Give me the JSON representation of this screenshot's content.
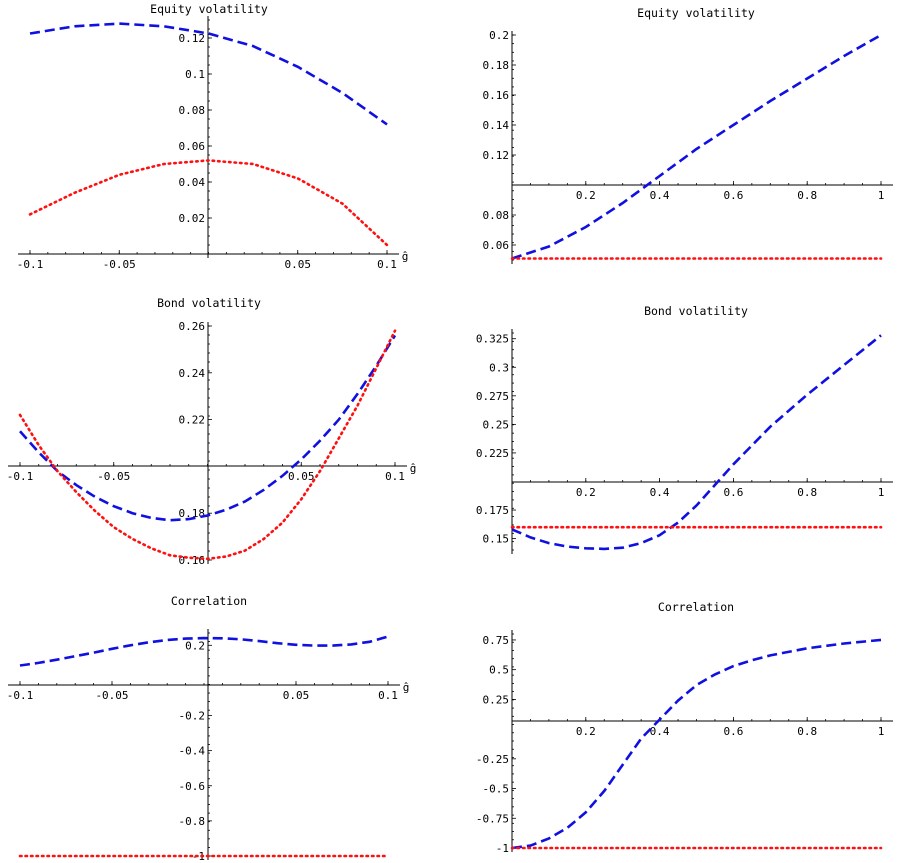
{
  "colors": {
    "dashed": "#1010e0",
    "dotted": "#ff1010"
  },
  "chart_data": [
    {
      "type": "line",
      "title": "Equity volatility",
      "xlabel": "ĝ",
      "xlim": [
        -0.1,
        0.1
      ],
      "ylim": [
        0.0,
        0.13
      ],
      "xticks": [
        -0.1,
        -0.05,
        0.05,
        0.1
      ],
      "xtick_labels": [
        "-0.1",
        "-0.05",
        "0.05",
        "0.1"
      ],
      "yticks": [
        0.02,
        0.04,
        0.06,
        0.08,
        0.1,
        0.12
      ],
      "ytick_labels": [
        "0.02",
        "0.04",
        "0.06",
        "0.08",
        "0.1",
        "0.12"
      ],
      "series": [
        {
          "style": "dashed",
          "x": [
            -0.1,
            -0.075,
            -0.05,
            -0.025,
            0.0,
            0.025,
            0.05,
            0.075,
            0.1
          ],
          "y": [
            0.1225,
            0.1265,
            0.128,
            0.1265,
            0.1225,
            0.1155,
            0.104,
            0.0895,
            0.072
          ]
        },
        {
          "style": "dotted",
          "x": [
            -0.1,
            -0.075,
            -0.05,
            -0.025,
            0.0,
            0.025,
            0.05,
            0.075,
            0.1
          ],
          "y": [
            0.022,
            0.034,
            0.044,
            0.05,
            0.052,
            0.05,
            0.042,
            0.028,
            0.005
          ]
        }
      ]
    },
    {
      "type": "line",
      "title": "Equity volatility",
      "xlabel": "",
      "xlim": [
        0.0,
        1.0
      ],
      "ylim": [
        0.05,
        0.2
      ],
      "xticks": [
        0.2,
        0.4,
        0.6,
        0.8,
        1.0
      ],
      "xtick_labels": [
        "0.2",
        "0.4",
        "0.6",
        "0.8",
        "1"
      ],
      "yticks": [
        0.06,
        0.08,
        0.12,
        0.14,
        0.16,
        0.18,
        0.2
      ],
      "ytick_labels": [
        "0.06",
        "0.08",
        "0.12",
        "0.14",
        "0.16",
        "0.18",
        "0.2"
      ],
      "series": [
        {
          "style": "dashed",
          "x": [
            0.0,
            0.1,
            0.2,
            0.3,
            0.4,
            0.5,
            0.6,
            0.7,
            0.8,
            0.9,
            1.0
          ],
          "y": [
            0.051,
            0.059,
            0.072,
            0.088,
            0.106,
            0.124,
            0.14,
            0.156,
            0.171,
            0.186,
            0.2
          ]
        },
        {
          "style": "dotted",
          "x": [
            0.0,
            1.0
          ],
          "y": [
            0.051,
            0.051
          ]
        }
      ]
    },
    {
      "type": "line",
      "title": "Bond volatility",
      "xlabel": "ĝ",
      "xlim": [
        -0.1,
        0.1
      ],
      "ylim": [
        0.16,
        0.26
      ],
      "xticks": [
        -0.1,
        -0.05,
        0.05,
        0.1
      ],
      "xtick_labels": [
        "-0.1",
        "-0.05",
        "0.05",
        "0.1"
      ],
      "yticks": [
        0.16,
        0.18,
        0.22,
        0.24,
        0.26
      ],
      "ytick_labels": [
        "0.16",
        "0.18",
        "0.22",
        "0.24",
        "0.26"
      ],
      "series": [
        {
          "style": "dashed",
          "x": [
            -0.1,
            -0.09,
            -0.08,
            -0.07,
            -0.06,
            -0.05,
            -0.04,
            -0.03,
            -0.02,
            -0.01,
            0.0,
            0.01,
            0.02,
            0.03,
            0.04,
            0.05,
            0.06,
            0.07,
            0.08,
            0.09,
            0.1
          ],
          "y": [
            0.215,
            0.206,
            0.198,
            0.192,
            0.187,
            0.183,
            0.18,
            0.178,
            0.177,
            0.1775,
            0.179,
            0.1815,
            0.185,
            0.19,
            0.196,
            0.203,
            0.211,
            0.22,
            0.231,
            0.243,
            0.256
          ]
        },
        {
          "style": "dotted",
          "x": [
            -0.1,
            -0.09,
            -0.08,
            -0.07,
            -0.06,
            -0.05,
            -0.04,
            -0.03,
            -0.02,
            -0.01,
            0.0,
            0.01,
            0.02,
            0.03,
            0.04,
            0.05,
            0.06,
            0.07,
            0.08,
            0.09,
            0.1
          ],
          "y": [
            0.222,
            0.209,
            0.198,
            0.189,
            0.181,
            0.174,
            0.169,
            0.165,
            0.162,
            0.161,
            0.1605,
            0.1615,
            0.164,
            0.169,
            0.176,
            0.186,
            0.198,
            0.212,
            0.226,
            0.242,
            0.258
          ]
        }
      ]
    },
    {
      "type": "line",
      "title": "Bond volatility",
      "xlabel": "",
      "xlim": [
        0.0,
        1.0
      ],
      "ylim": [
        0.14,
        0.33
      ],
      "xticks": [
        0.2,
        0.4,
        0.6,
        0.8,
        1.0
      ],
      "xtick_labels": [
        "0.2",
        "0.4",
        "0.6",
        "0.8",
        "1"
      ],
      "yticks": [
        0.15,
        0.175,
        0.225,
        0.25,
        0.275,
        0.3,
        0.325
      ],
      "ytick_labels": [
        "0.15",
        "0.175",
        "0.225",
        "0.25",
        "0.275",
        "0.3",
        "0.325"
      ],
      "series": [
        {
          "style": "dashed",
          "x": [
            0.0,
            0.05,
            0.1,
            0.15,
            0.2,
            0.25,
            0.3,
            0.35,
            0.4,
            0.45,
            0.5,
            0.55,
            0.6,
            0.7,
            0.8,
            0.9,
            1.0
          ],
          "y": [
            0.158,
            0.151,
            0.146,
            0.143,
            0.1415,
            0.141,
            0.142,
            0.146,
            0.153,
            0.164,
            0.179,
            0.197,
            0.215,
            0.248,
            0.276,
            0.302,
            0.328
          ]
        },
        {
          "style": "dotted",
          "x": [
            0.0,
            1.0
          ],
          "y": [
            0.16,
            0.16
          ]
        }
      ]
    },
    {
      "type": "line",
      "title": "Correlation",
      "xlabel": "ĝ",
      "xlim": [
        -0.1,
        0.1
      ],
      "ylim": [
        -1.0,
        0.27
      ],
      "xticks": [
        -0.1,
        -0.05,
        0.05,
        0.1
      ],
      "xtick_labels": [
        "-0.1",
        "-0.05",
        "0.05",
        "0.1"
      ],
      "yticks": [
        0.2,
        -0.2,
        -0.4,
        -0.6,
        -0.8,
        -1.0
      ],
      "ytick_labels": [
        "0.2",
        "-0.2",
        "-0.4",
        "-0.6",
        "-0.8",
        "-1"
      ],
      "series": [
        {
          "style": "dashed",
          "x": [
            -0.1,
            -0.09,
            -0.08,
            -0.07,
            -0.06,
            -0.05,
            -0.04,
            -0.03,
            -0.02,
            -0.01,
            0.0,
            0.01,
            0.02,
            0.03,
            0.04,
            0.05,
            0.06,
            0.07,
            0.08,
            0.09,
            0.1
          ],
          "y": [
            0.085,
            0.1,
            0.118,
            0.138,
            0.158,
            0.18,
            0.2,
            0.217,
            0.23,
            0.238,
            0.241,
            0.24,
            0.234,
            0.224,
            0.212,
            0.203,
            0.198,
            0.198,
            0.205,
            0.22,
            0.25
          ]
        },
        {
          "style": "dotted",
          "x": [
            -0.1,
            0.1
          ],
          "y": [
            -1.0,
            -1.0
          ]
        }
      ]
    },
    {
      "type": "line",
      "title": "Correlation",
      "xlabel": "",
      "xlim": [
        0.0,
        1.0
      ],
      "ylim": [
        -1.0,
        0.8
      ],
      "xticks": [
        0.2,
        0.4,
        0.6,
        0.8,
        1.0
      ],
      "xtick_labels": [
        "0.2",
        "0.4",
        "0.6",
        "0.8",
        "1"
      ],
      "yticks": [
        0.75,
        0.5,
        0.25,
        -0.25,
        -0.5,
        -0.75,
        -1.0
      ],
      "ytick_labels": [
        "0.75",
        "0.5",
        "0.25",
        "-0.25",
        "-0.5",
        "-0.75",
        "-1"
      ],
      "series": [
        {
          "style": "dashed",
          "x": [
            0.0,
            0.05,
            0.1,
            0.15,
            0.2,
            0.25,
            0.3,
            0.35,
            0.4,
            0.45,
            0.5,
            0.55,
            0.6,
            0.65,
            0.7,
            0.8,
            0.9,
            1.0
          ],
          "y": [
            -1.0,
            -0.98,
            -0.92,
            -0.83,
            -0.7,
            -0.52,
            -0.3,
            -0.08,
            0.08,
            0.24,
            0.37,
            0.46,
            0.53,
            0.58,
            0.62,
            0.68,
            0.72,
            0.75
          ]
        },
        {
          "style": "dotted",
          "x": [
            0.0,
            1.0
          ],
          "y": [
            -1.0,
            -1.0
          ]
        }
      ]
    }
  ]
}
